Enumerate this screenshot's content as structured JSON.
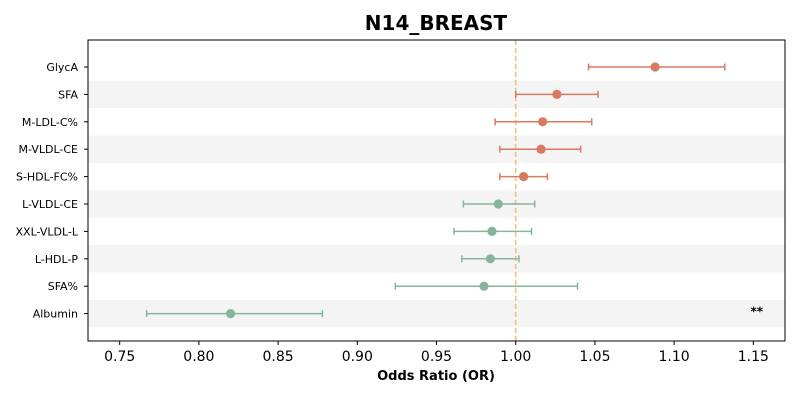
{
  "chart_data": {
    "type": "forest",
    "title": "N14_BREAST",
    "xlabel": "Odds Ratio (OR)",
    "ylabel": "",
    "xlim": [
      0.73,
      1.17
    ],
    "xticks": [
      "0.75",
      "0.80",
      "0.85",
      "0.90",
      "0.95",
      "1.00",
      "1.05",
      "1.10",
      "1.15"
    ],
    "reference_line": 1.0,
    "colors": {
      "positive": "#d97a60",
      "negative": "#86b59b",
      "reference": "#f0c27b",
      "stripe": "#f4f4f4"
    },
    "rows": [
      {
        "label": "GlycA",
        "or": 1.088,
        "lo": 1.046,
        "hi": 1.132,
        "sig": ""
      },
      {
        "label": "SFA",
        "or": 1.026,
        "lo": 1.0,
        "hi": 1.052,
        "sig": ""
      },
      {
        "label": "M-LDL-C%",
        "or": 1.017,
        "lo": 0.987,
        "hi": 1.048,
        "sig": ""
      },
      {
        "label": "M-VLDL-CE",
        "or": 1.016,
        "lo": 0.99,
        "hi": 1.041,
        "sig": ""
      },
      {
        "label": "S-HDL-FC%",
        "or": 1.005,
        "lo": 0.99,
        "hi": 1.02,
        "sig": ""
      },
      {
        "label": "L-VLDL-CE",
        "or": 0.989,
        "lo": 0.967,
        "hi": 1.012,
        "sig": ""
      },
      {
        "label": "XXL-VLDL-L",
        "or": 0.985,
        "lo": 0.961,
        "hi": 1.01,
        "sig": ""
      },
      {
        "label": "L-HDL-P",
        "or": 0.984,
        "lo": 0.966,
        "hi": 1.002,
        "sig": ""
      },
      {
        "label": "SFA%",
        "or": 0.98,
        "lo": 0.924,
        "hi": 1.039,
        "sig": ""
      },
      {
        "label": "Albumin",
        "or": 0.82,
        "lo": 0.767,
        "hi": 0.878,
        "sig": "**"
      }
    ]
  }
}
